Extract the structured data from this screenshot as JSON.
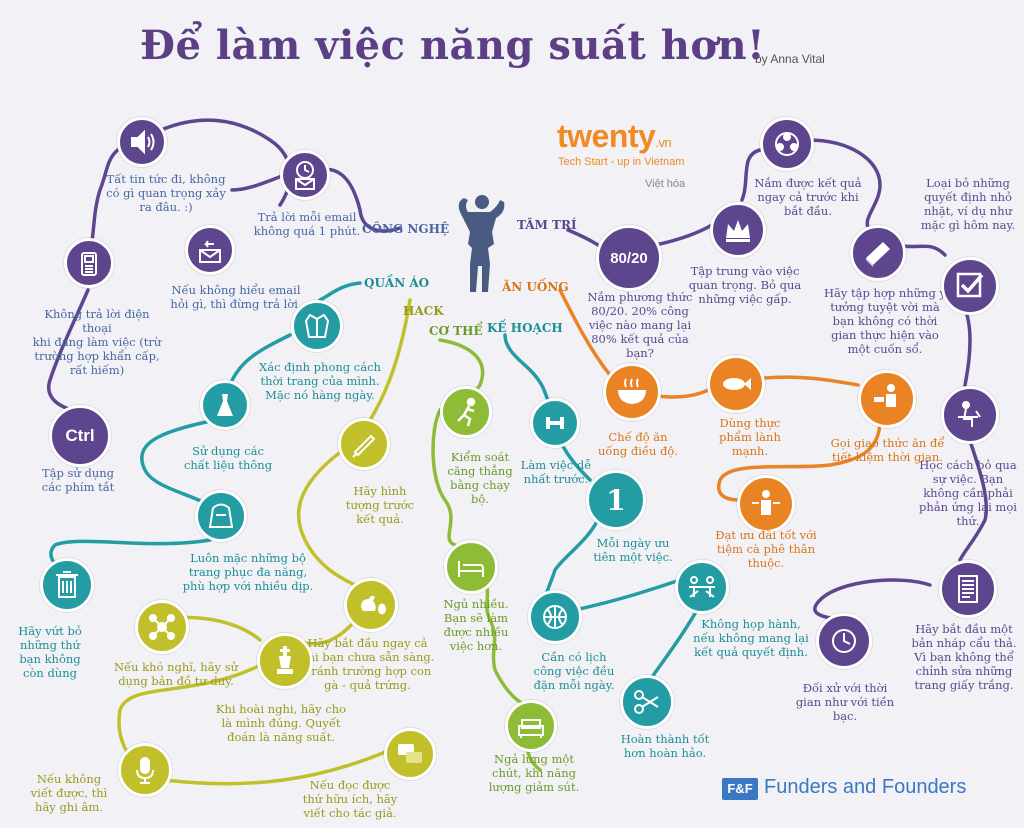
{
  "title": "Để làm việc năng suất hơn!",
  "byline": "by Anna Vital",
  "brand": {
    "name": "twenty",
    "suffix": ".vn",
    "tagline": "Tech Start - up in Vietnam",
    "note": "Việt hóa"
  },
  "footer": {
    "logo_text": "F&F",
    "name": "Funders and Founders"
  },
  "colors": {
    "purple": "#5e468f",
    "blue": "#4766a3",
    "teal": "#239ca3",
    "green": "#8fbc37",
    "olive": "#c2c02a",
    "orange": "#e98324"
  },
  "categories": {
    "cong_nghe": "CÔNG NGHỆ",
    "quan_ao": "QUẦN ÁO",
    "hack": "HACK",
    "co_the": "CƠ THỂ",
    "ke_hoach": "KẾ HOẠCH",
    "an_uong": "ĂN UỐNG",
    "tam_tri": "TÂM TRÍ"
  },
  "tips": {
    "tat_tin": "Tất tin tức đi, không\ncó gì quan trọng xảy\nra đâu. :)",
    "tra_loi_email": "Trả lời mỗi email\nkhông quá 1 phút.",
    "hieu_email": "Nếu không hiểu email\nhỏi gì, thì đừng trả lời.",
    "dien_thoai": "Không trả lời điện thoại\nkhi đang làm việc (trừ\ntrường hợp khẩn cấp,\nrất hiếm)",
    "phim_tat": "Tập sử dụng\ncác phím tắt",
    "ctrl": "Ctrl",
    "phong_cach": "Xác định phong cách\nthời trang của mình.\nMặc nó hàng  ngày.",
    "chat_lieu": "Sử dụng các\nchất liệu thông",
    "da_nang": "Luôn mặc những bộ\ntrang phục đa năng,\nphù hợp với nhiều dịp.",
    "vut_bo": "Hãy vứt bỏ\nnhững thứ\nbạn không\ncòn dùng",
    "hinh_tuong": "Hãy hình\ntượng trước\nkết quả.",
    "bat_dau": "Hãy bắt đầu ngay cả\nkhi bạn chưa sẵn sàng.\nTránh trường hợp con\ngà - quả trứng.",
    "ban_do": "Nếu khó nghĩ, hãy sử\ndụng bản đồ tư duy.",
    "hoai_nghi": "Khi hoài nghi, hãy cho\nlà mình đúng. Quyết\nđoán là năng suất.",
    "ghi_am": "Nếu không\nviết được, thì\nhãy ghi âm.",
    "tac_gia": "Nếu đọc được\nthứ hữu ích, hãy\nviết cho tác giả.",
    "chay_bo": "Kiểm soát\ncăng thẳng\nbằng chạy bộ.",
    "ngu_nhieu": "Ngủ nhiều.\nBạn sẽ làm\nđược nhiều\nviệc hơn.",
    "nga_lung": "Ngả lưng một\nchút, khi năng\nlượng giảm sút.",
    "de_nhat": "Làm việc dễ\nnhất trước.",
    "uu_tien": "Mỗi ngày ưu\ntiên một việc.",
    "lich": "Cần có lịch\ncông việc đều\nđặn mỗi ngày.",
    "hop_hanh": "Không họp hành,\nnếu không mang lại\nkết quả quyết định.",
    "hoan_thanh": "Hoàn thành tốt\nhơn hoàn hảo.",
    "che_do": "Chế độ ăn\nuống điều độ.",
    "thuc_pham": "Dùng thực\nphẩm lành\nmạnh.",
    "giao_thuc_an": "Gọi giao thức ăn để\ntiết kiệm thời gian.",
    "uu_dai": "Đạt ưu đãi tốt với\ntiệm cà phê thân\nthuộc.",
    "pt_8020": "Nắm phương thức\n80/20. 20% công\nviệc nào mang lại\n80% kết quả của\nbạn?",
    "label_8020": "80/20",
    "tap_trung": "Tập trung vào việc\nquan trọng. Bỏ qua\nnhững việc gấp.",
    "ket_qua": "Nắm được kết  quả\nngay cả trước khi\nbắt đầu.",
    "y_tuong": "Hãy tập hợp những ý\ntưởng tuyệt vời mà\nbạn không có thời\ngian thực hiện vào\nmột cuốn sổ.",
    "quyet_dinh": "Loại bỏ những\nquyết định nhỏ\nnhặt, ví dụ như\nmặc gì hôm nay.",
    "bo_qua": "Học cách bỏ qua\nsự việc. Bạn\nkhông cần phải\nphản ứng lại mọi\nthứ.",
    "ban_nhap": "Hãy bắt đầu một\nbản nháp cẩu thả.\nVì bạn không thể\nchỉnh sửa những\ntrang giấy trắng.",
    "thoi_gian": "Đối xử với thời\ngian như với tiền\nbạc.",
    "label_1": "1"
  }
}
